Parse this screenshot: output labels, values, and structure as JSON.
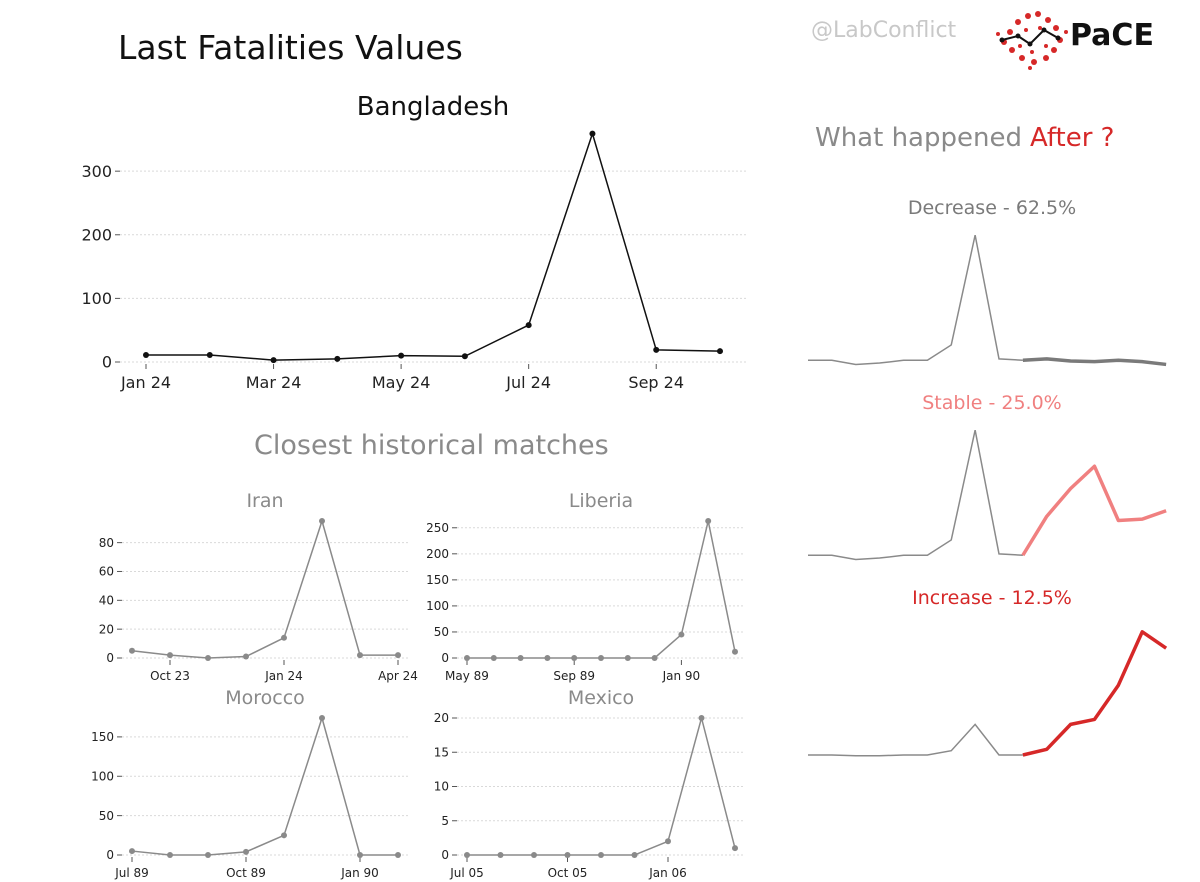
{
  "header": {
    "title": "Last Fatalities Values",
    "handle": "@LabConflict",
    "logo_text": "PaCE"
  },
  "sections": {
    "matches_title": "Closest historical matches",
    "after_prefix": "What happened",
    "after_highlight": "After ?"
  },
  "colors": {
    "main_line": "#111111",
    "match_line": "#8a8a8a",
    "decrease": "#7a7a7a",
    "stable": "#f08080",
    "increase": "#d62828",
    "grid": "#d9d9d9"
  },
  "chart_data": [
    {
      "id": "main",
      "type": "line",
      "title": "Bangladesh",
      "x": [
        "Jan 24",
        "Feb 24",
        "Mar 24",
        "Apr 24",
        "May 24",
        "Jun 24",
        "Jul 24",
        "Aug 24",
        "Sep 24",
        "Oct 24"
      ],
      "values": [
        11,
        11,
        3,
        5,
        10,
        9,
        58,
        359,
        19,
        17
      ],
      "xticks": [
        "Jan 24",
        "Mar 24",
        "May 24",
        "Jul 24",
        "Sep 24"
      ],
      "xtick_index": [
        0,
        2,
        4,
        6,
        8
      ],
      "yticks": [
        0,
        100,
        200,
        300
      ],
      "ylim": [
        0,
        360
      ]
    },
    {
      "id": "iran",
      "type": "line",
      "title": "Iran",
      "x": [
        "Sep 23",
        "Oct 23",
        "Nov 23",
        "Dec 23",
        "Jan 24",
        "Feb 24",
        "Mar 24",
        "Apr 24"
      ],
      "values": [
        5,
        2,
        0,
        1,
        14,
        95,
        2,
        2
      ],
      "xticks": [
        "Oct 23",
        "Jan 24",
        "Apr 24"
      ],
      "xtick_index": [
        1,
        4,
        7
      ],
      "yticks": [
        0,
        20,
        40,
        60,
        80
      ],
      "ylim": [
        0,
        95
      ]
    },
    {
      "id": "liberia",
      "type": "line",
      "title": "Liberia",
      "x": [
        "May 89",
        "Jun 89",
        "Jul 89",
        "Aug 89",
        "Sep 89",
        "Oct 89",
        "Nov 89",
        "Dec 89",
        "Jan 90",
        "Feb 90",
        "Mar 90"
      ],
      "values": [
        0,
        0,
        0,
        0,
        0,
        0,
        0,
        0,
        45,
        263,
        12
      ],
      "xticks": [
        "May 89",
        "Sep 89",
        "Jan 90"
      ],
      "xtick_index": [
        0,
        4,
        8
      ],
      "yticks": [
        0,
        50,
        100,
        150,
        200,
        250
      ],
      "ylim": [
        0,
        263
      ]
    },
    {
      "id": "morocco",
      "type": "line",
      "title": "Morocco",
      "x": [
        "Jul 89",
        "Aug 89",
        "Sep 89",
        "Oct 89",
        "Nov 89",
        "Dec 89",
        "Jan 90",
        "Feb 90"
      ],
      "values": [
        5,
        0,
        0,
        4,
        25,
        174,
        0,
        0
      ],
      "xticks": [
        "Jul 89",
        "Oct 89",
        "Jan 90"
      ],
      "xtick_index": [
        0,
        3,
        6
      ],
      "yticks": [
        0,
        50,
        100,
        150
      ],
      "ylim": [
        0,
        174
      ]
    },
    {
      "id": "mexico",
      "type": "line",
      "title": "Mexico",
      "x": [
        "Jul 05",
        "Aug 05",
        "Sep 05",
        "Oct 05",
        "Nov 05",
        "Dec 05",
        "Jan 06",
        "Feb 06",
        "Mar 06"
      ],
      "values": [
        0,
        0,
        0,
        0,
        0,
        0,
        2,
        20,
        1
      ],
      "xticks": [
        "Jul 05",
        "Oct 05",
        "Jan 06"
      ],
      "xtick_index": [
        0,
        3,
        6
      ],
      "yticks": [
        0,
        5,
        10,
        15,
        20
      ],
      "ylim": [
        0,
        20
      ]
    },
    {
      "id": "decrease",
      "type": "line",
      "title": "Decrease - 62.5%",
      "history": [
        0.02,
        0.02,
        -0.01,
        0.0,
        0.02,
        0.02,
        0.13,
        0.92,
        0.03,
        0.02
      ],
      "future": [
        0.02,
        0.03,
        0.015,
        0.01,
        0.02,
        0.01,
        -0.01
      ],
      "ylim": [
        -0.05,
        1.0
      ]
    },
    {
      "id": "stable",
      "type": "line",
      "title": "Stable - 25.0%",
      "history": [
        0.02,
        0.02,
        -0.01,
        0.0,
        0.02,
        0.02,
        0.13,
        0.92,
        0.03,
        0.02
      ],
      "future": [
        0.02,
        0.3,
        0.5,
        0.66,
        0.27,
        0.28,
        0.34
      ],
      "ylim": [
        -0.05,
        1.0
      ]
    },
    {
      "id": "increase",
      "type": "line",
      "title": "Increase - 12.5%",
      "history": [
        0.02,
        0.02,
        0.01,
        0.01,
        0.02,
        0.02,
        0.08,
        0.45,
        0.02,
        0.02
      ],
      "future": [
        0.02,
        0.1,
        0.45,
        0.52,
        1.0,
        1.75,
        1.52
      ],
      "ylim": [
        -0.05,
        2.0
      ]
    }
  ]
}
